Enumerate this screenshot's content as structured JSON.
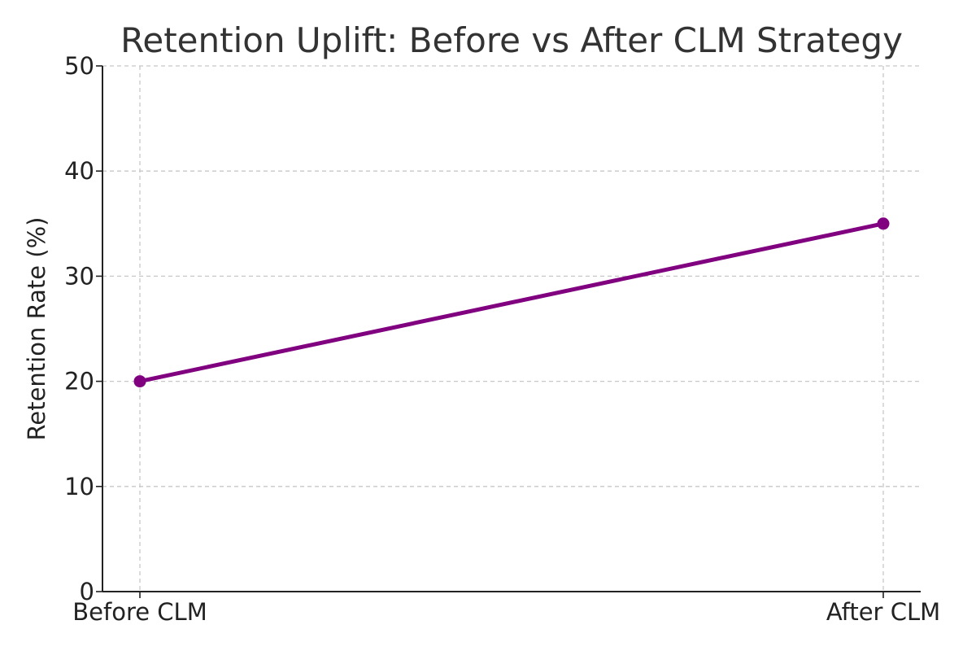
{
  "chart_data": {
    "type": "line",
    "title": "Retention Uplift: Before vs After CLM Strategy",
    "xlabel": "",
    "ylabel": "Retention Rate (%)",
    "categories": [
      "Before CLM",
      "After CLM"
    ],
    "series": [
      {
        "values": [
          20,
          35
        ],
        "color": "#800080"
      }
    ],
    "ylim": [
      0,
      50
    ],
    "yticks": [
      0,
      10,
      20,
      30,
      40,
      50
    ],
    "grid": true,
    "marker": "circle"
  }
}
